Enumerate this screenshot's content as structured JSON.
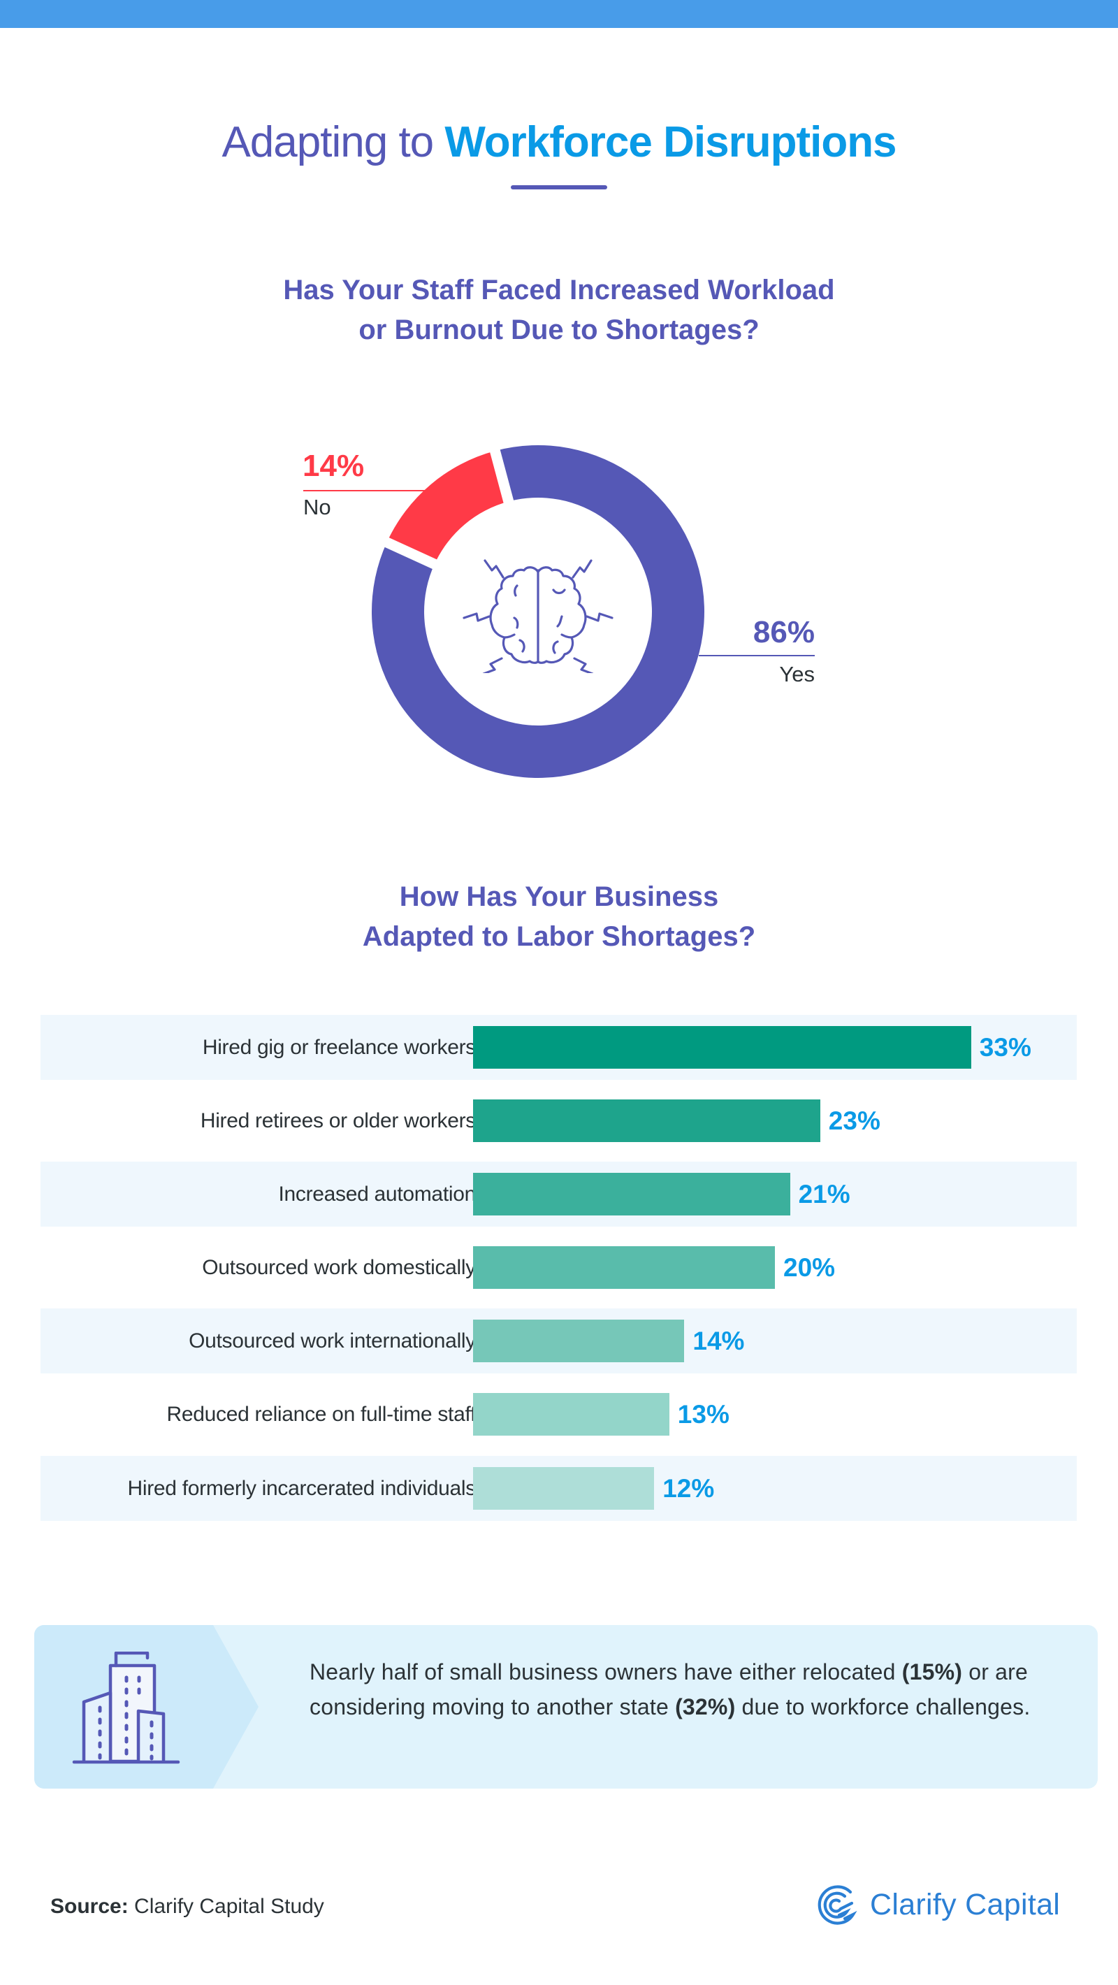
{
  "header": {
    "title_part1": "Adapting to ",
    "title_part2": "Workforce Disruptions"
  },
  "colors": {
    "top_bar": "#489CE9",
    "purple": "#5558B6",
    "blue_accent": "#0A9AE6",
    "red": "#FF3A47",
    "row_band": "#EFF7FD",
    "callout_bg": "#E0F3FC",
    "callout_arrow": "#CCEAFA",
    "logo_blue": "#2B7FD4"
  },
  "section1": {
    "question_line1": "Has Your Staff Faced Increased Workload",
    "question_line2": "or Burnout Due to Shortages?",
    "no_pct": "14%",
    "no_label": "No",
    "yes_pct": "86%",
    "yes_label": "Yes",
    "center_icon": "brain-icon"
  },
  "section2": {
    "question_line1": "How Has Your Business",
    "question_line2": "Adapted to Labor Shortages?",
    "rows": [
      {
        "label": "Hired gig or freelance workers",
        "value": "33%"
      },
      {
        "label": "Hired retirees or older workers",
        "value": "23%"
      },
      {
        "label": "Increased automation",
        "value": "21%"
      },
      {
        "label": "Outsourced work domestically",
        "value": "20%"
      },
      {
        "label": "Outsourced work internationally",
        "value": "14%"
      },
      {
        "label": "Reduced reliance on full-time staff",
        "value": "13%"
      },
      {
        "label": "Hired formerly incarcerated individuals",
        "value": "12%"
      }
    ]
  },
  "callout": {
    "icon": "building-icon",
    "text_part1": "Nearly half of small business owners have either relocated ",
    "bold1": "(15%)",
    "text_part2": " or are considering moving to another state ",
    "bold2": "(32%)",
    "text_part3": " due to workforce challenges."
  },
  "footer": {
    "source_label": "Source:",
    "source_text": " Clarify Capital Study",
    "logo_text": "Clarify Capital",
    "logo_icon": "clarify-capital-logo-icon"
  },
  "chart_data": [
    {
      "type": "pie",
      "title": "Has Your Staff Faced Increased Workload or Burnout Due to Shortages?",
      "categories": [
        "Yes",
        "No"
      ],
      "values": [
        86,
        14
      ],
      "colors": [
        "#5558B6",
        "#FF3A47"
      ],
      "donut": true,
      "unit": "%"
    },
    {
      "type": "bar",
      "orientation": "horizontal",
      "title": "How Has Your Business Adapted to Labor Shortages?",
      "categories": [
        "Hired gig or freelance workers",
        "Hired retirees or older workers",
        "Increased automation",
        "Outsourced work domestically",
        "Outsourced work internationally",
        "Reduced reliance on full-time staff",
        "Hired formerly incarcerated individuals"
      ],
      "values": [
        33,
        23,
        21,
        20,
        14,
        13,
        12
      ],
      "colors": [
        "#009A80",
        "#1EA48C",
        "#3BB09C",
        "#59BCAB",
        "#76C7B8",
        "#93D5C9",
        "#AEDED8"
      ],
      "unit": "%",
      "xlabel": "",
      "ylabel": "",
      "grid": false
    }
  ]
}
